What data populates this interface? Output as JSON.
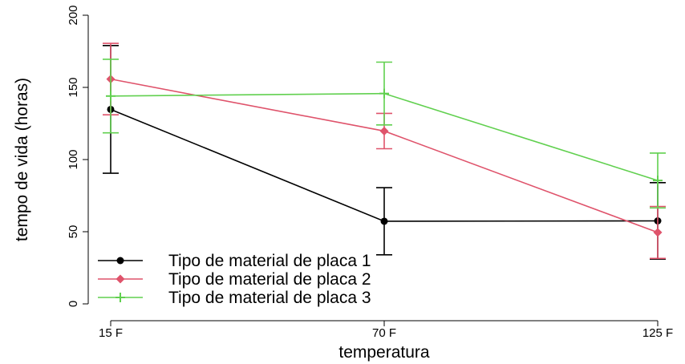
{
  "chart_data": {
    "type": "line",
    "xlabel": "temperatura",
    "ylabel": "tempo de vida (horas)",
    "ylim": [
      0,
      200
    ],
    "yticks": [
      0,
      50,
      100,
      150,
      200
    ],
    "categories": [
      "15 F",
      "70 F",
      "125 F"
    ],
    "grid": false,
    "legend_position": "bottom-left",
    "series": [
      {
        "name": "Tipo de material de placa 1",
        "color": "#000000",
        "marker": "circle",
        "values": [
          134.75,
          57.25,
          57.5
        ],
        "error_low": [
          90.5,
          34.0,
          31.0
        ],
        "error_high": [
          179.0,
          80.5,
          84.0
        ]
      },
      {
        "name": "Tipo de material de placa 2",
        "color": "#DF536B",
        "marker": "diamond",
        "values": [
          155.75,
          119.75,
          49.5
        ],
        "error_low": [
          131.0,
          107.5,
          31.5
        ],
        "error_high": [
          180.5,
          132.0,
          67.5
        ]
      },
      {
        "name": "Tipo de material de placa 3",
        "color": "#61D04F",
        "marker": "plus",
        "values": [
          144.0,
          145.75,
          85.5
        ],
        "error_low": [
          118.5,
          124.0,
          66.5
        ],
        "error_high": [
          169.5,
          167.5,
          104.5
        ]
      }
    ]
  }
}
